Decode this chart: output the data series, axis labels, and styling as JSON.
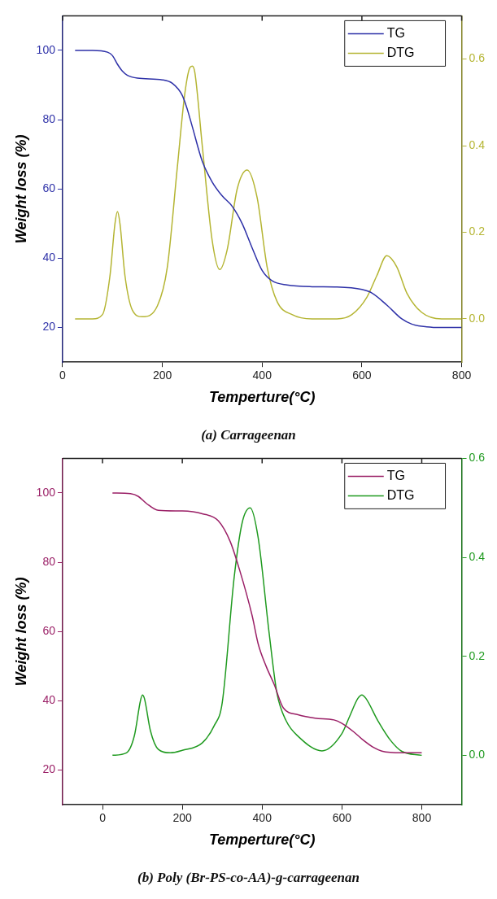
{
  "chart_data": [
    {
      "type": "line",
      "title": "(a) Carrageenan",
      "xlabel": "Temperture(°C)",
      "ylabel": "Weight loss (%)",
      "xlim": [
        0,
        800
      ],
      "xticks": [
        0,
        200,
        400,
        600,
        800
      ],
      "ylim": [
        10,
        110
      ],
      "yticks": [
        20,
        40,
        60,
        80,
        100
      ],
      "y2lim": [
        -0.1,
        0.7
      ],
      "y2ticks": [
        {
          "value": 0,
          "label": "0.0"
        },
        {
          "value": 0.2,
          "label": "0.2"
        },
        {
          "value": 0.4,
          "label": "0.4"
        },
        {
          "value": 0.6,
          "label": "0.6"
        }
      ],
      "grid": false,
      "legend": "top right",
      "marker": "none",
      "line_style": "solid",
      "series": [
        {
          "name": "TG",
          "color": "#2e31a8",
          "x": [
            25,
            60,
            90,
            100,
            110,
            120,
            130,
            150,
            200,
            220,
            240,
            250,
            260,
            280,
            300,
            320,
            340,
            360,
            380,
            400,
            420,
            450,
            500,
            550,
            600,
            620,
            650,
            680,
            700,
            730,
            760,
            800
          ],
          "values": [
            100,
            100,
            99.5,
            98.5,
            96,
            94,
            92.8,
            92,
            91.5,
            90.5,
            87,
            83,
            78,
            68,
            62,
            58,
            55,
            50,
            43,
            36.5,
            33.5,
            32.3,
            31.8,
            31.7,
            31,
            30,
            26.5,
            22.5,
            21,
            20.2,
            20,
            20
          ]
        },
        {
          "name": "DTG",
          "color": "#b5b533",
          "axis": "y2",
          "x": [
            25,
            60,
            80,
            95,
            105,
            110,
            115,
            125,
            140,
            160,
            190,
            210,
            230,
            245,
            255,
            260,
            265,
            280,
            300,
            315,
            330,
            350,
            370,
            390,
            410,
            430,
            460,
            500,
            550,
            580,
            610,
            630,
            650,
            670,
            690,
            720,
            760,
            800
          ],
          "values": [
            0,
            0,
            0.01,
            0.1,
            0.22,
            0.248,
            0.22,
            0.1,
            0.02,
            0.005,
            0.03,
            0.12,
            0.35,
            0.52,
            0.58,
            0.584,
            0.57,
            0.4,
            0.18,
            0.114,
            0.16,
            0.3,
            0.344,
            0.28,
            0.12,
            0.04,
            0.01,
            0,
            0,
            0.01,
            0.05,
            0.1,
            0.146,
            0.12,
            0.06,
            0.015,
            0,
            0
          ]
        }
      ]
    },
    {
      "type": "line",
      "title": "(b) Poly (Br-PS-co-AA)-g-carrageenan",
      "xlabel": "Temperture(°C)",
      "ylabel": "Weight loss (%)",
      "xlim": [
        -100,
        900
      ],
      "xticks": [
        0,
        200,
        400,
        600,
        800
      ],
      "ylim": [
        10,
        110
      ],
      "yticks": [
        20,
        40,
        60,
        80,
        100
      ],
      "y2lim": [
        -0.1,
        0.6
      ],
      "y2ticks": [
        {
          "value": 0,
          "label": "0.0"
        },
        {
          "value": 0.2,
          "label": "0.2"
        },
        {
          "value": 0.4,
          "label": "0.4"
        },
        {
          "value": 0.6,
          "label": "0.6"
        }
      ],
      "grid": false,
      "legend": "top right",
      "marker": "none",
      "line_style": "solid",
      "series": [
        {
          "name": "TG",
          "color": "#9a1f66",
          "x": [
            25,
            70,
            90,
            110,
            140,
            200,
            250,
            290,
            320,
            343,
            375,
            390,
            410,
            430,
            453,
            490,
            533,
            580,
            600,
            630,
            650,
            680,
            700,
            750,
            800
          ],
          "values": [
            100,
            99.8,
            99,
            97,
            95,
            94.8,
            94,
            92,
            86,
            78,
            64.6,
            56.5,
            50,
            44.8,
            38,
            36,
            35,
            34.5,
            33.5,
            31,
            29,
            26.5,
            25.5,
            25,
            25
          ]
        },
        {
          "name": "DTG",
          "color": "#1f9a1f",
          "axis": "y2",
          "x": [
            25,
            60,
            80,
            95,
            100,
            105,
            120,
            140,
            170,
            200,
            250,
            280,
            300,
            330,
            350,
            370,
            390,
            418,
            437,
            460,
            492,
            550,
            600,
            620,
            640,
            650,
            660,
            690,
            722,
            750,
            800
          ],
          "values": [
            0,
            0.005,
            0.04,
            0.11,
            0.122,
            0.115,
            0.05,
            0.012,
            0.005,
            0.01,
            0.025,
            0.06,
            0.106,
            0.36,
            0.47,
            0.5,
            0.44,
            0.244,
            0.126,
            0.07,
            0.037,
            0.009,
            0.044,
            0.08,
            0.115,
            0.122,
            0.115,
            0.07,
            0.03,
            0.008,
            0
          ]
        }
      ]
    }
  ]
}
